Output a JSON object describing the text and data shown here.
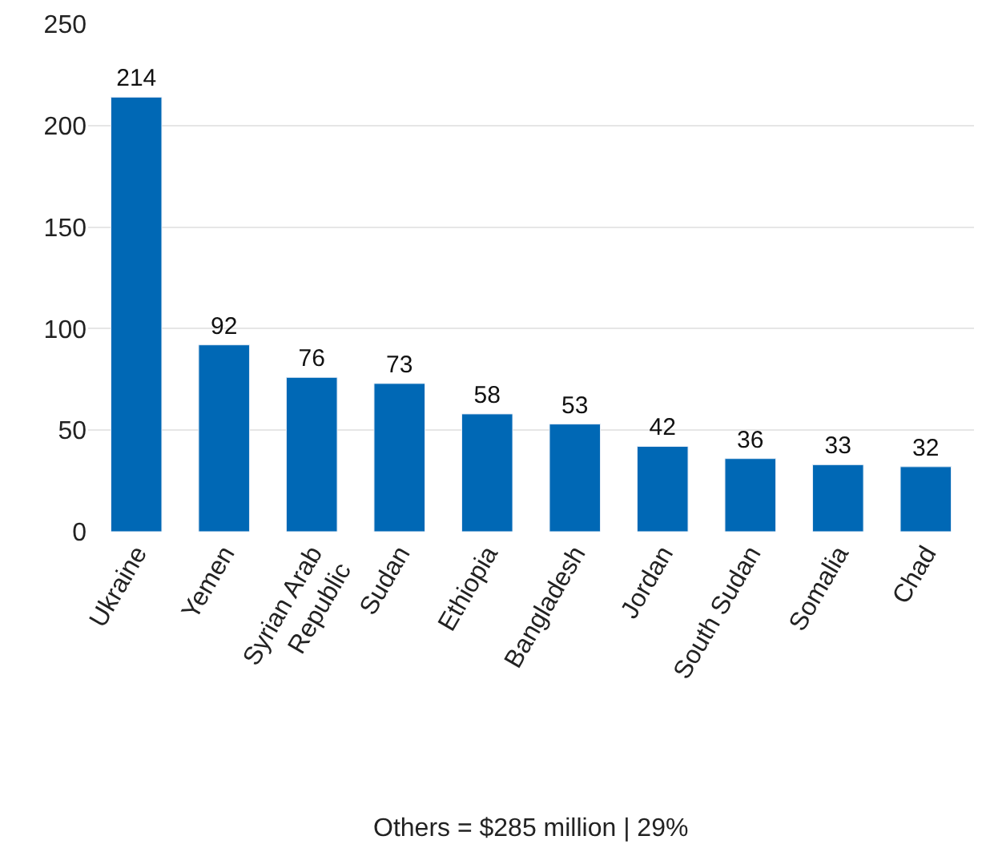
{
  "chart_data": {
    "type": "bar",
    "categories": [
      "Ukraine",
      "Yemen",
      "Syrian Arab Republic",
      "Sudan",
      "Ethiopia",
      "Bangladesh",
      "Jordan",
      "South Sudan",
      "Somalia",
      "Chad"
    ],
    "values": [
      214,
      92,
      76,
      73,
      58,
      53,
      42,
      36,
      33,
      32
    ],
    "color": "#0068b5",
    "ylim": [
      0,
      250
    ],
    "yticks": [
      0,
      50,
      100,
      150,
      200,
      250
    ],
    "grid": "y",
    "data_labels": true,
    "annotations": [
      "Others = $285 million | 29%"
    ]
  }
}
